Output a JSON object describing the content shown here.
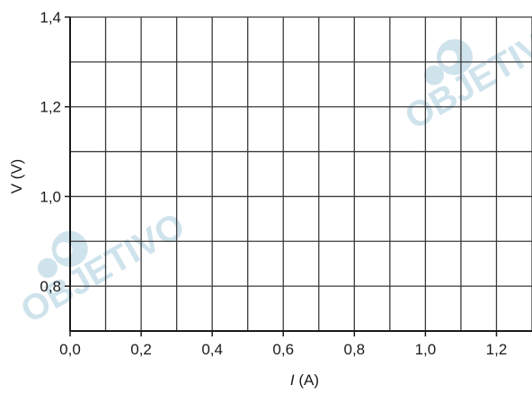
{
  "chart_data": {
    "type": "line",
    "title": "",
    "xlabel": "I (A)",
    "xlabel_var": "I",
    "xlabel_unit": "(A)",
    "ylabel": "V (V)",
    "xlim": [
      0.0,
      1.3
    ],
    "ylim": [
      0.7,
      1.4
    ],
    "x_ticks": [
      "0,0",
      "0,2",
      "0,4",
      "0,6",
      "0,8",
      "1,0",
      "1,2"
    ],
    "x_tick_values": [
      0.0,
      0.2,
      0.4,
      0.6,
      0.8,
      1.0,
      1.2
    ],
    "y_ticks": [
      "0,8",
      "1,0",
      "1,2",
      "1,4"
    ],
    "y_tick_values": [
      0.8,
      1.0,
      1.2,
      1.4
    ],
    "x_grid_step": 0.1,
    "y_grid_step": 0.1,
    "grid": true,
    "series": []
  },
  "watermark": {
    "text": "OBJETIVO",
    "color": "#cfe3ec",
    "icon": "objetivo-logo-icon"
  },
  "colors": {
    "grid": "#3a3a3a",
    "axis": "#1a1a1a",
    "text": "#1a1a1a"
  }
}
